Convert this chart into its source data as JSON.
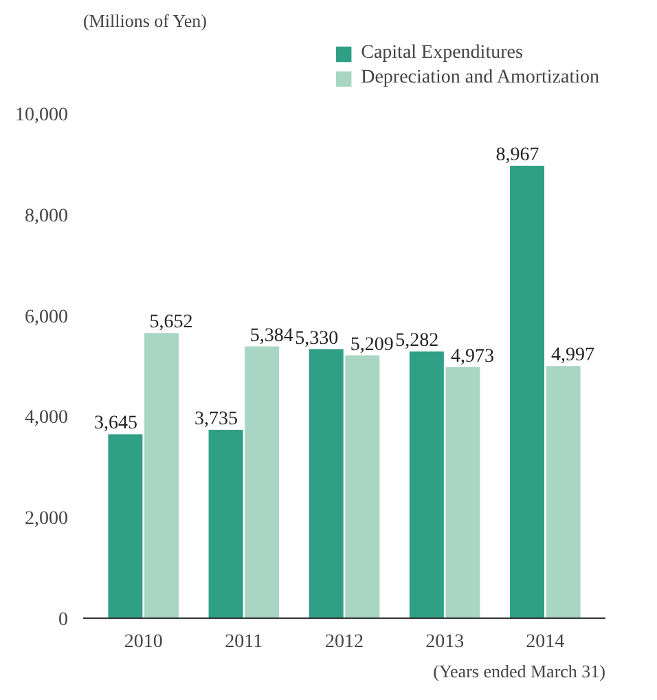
{
  "chart_data": {
    "type": "bar",
    "ylabel": "(Millions of Yen)",
    "categories": [
      "2010",
      "2011",
      "2012",
      "2013",
      "2014"
    ],
    "series": [
      {
        "name": "Capital Expenditures",
        "color": "#2f9f86",
        "values": [
          3645,
          3735,
          5330,
          5282,
          8967
        ],
        "value_labels": [
          "3,645",
          "3,735",
          "5,330",
          "5,282",
          "8,967"
        ]
      },
      {
        "name": "Depreciation and Amortization",
        "color": "#a9d6c4",
        "values": [
          5652,
          5384,
          5209,
          4973,
          4997
        ],
        "value_labels": [
          "5,652",
          "5,384",
          "5,209",
          "4,973",
          "4,997"
        ]
      }
    ],
    "ylim": [
      0,
      11500
    ],
    "yticks": [
      {
        "value": 0,
        "label": "0"
      },
      {
        "value": 2000,
        "label": "2,000"
      },
      {
        "value": 4000,
        "label": "4,000"
      },
      {
        "value": 6000,
        "label": "6,000"
      },
      {
        "value": 8000,
        "label": "8,000"
      },
      {
        "value": 10000,
        "label": "10,000"
      }
    ],
    "grid": false,
    "legend": "top right",
    "annotations": [
      "(Years ended March 31)"
    ]
  }
}
